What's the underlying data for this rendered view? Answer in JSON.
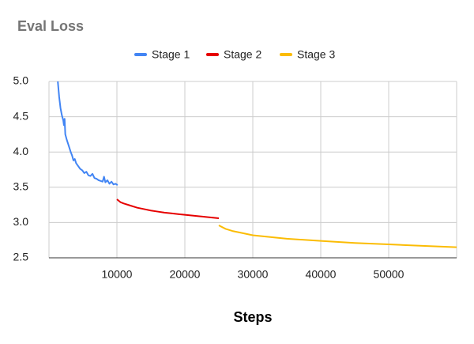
{
  "chart_data": {
    "type": "line",
    "title": "Eval Loss",
    "x_label": "Steps",
    "legend": "top",
    "grid": true,
    "xlim": [
      0,
      60000
    ],
    "xticks": [
      10000,
      20000,
      30000,
      40000,
      50000
    ],
    "ylim": [
      2.5,
      5
    ],
    "yticks": [
      {
        "value": 2.5,
        "label": "2.5"
      },
      {
        "value": 3,
        "label": "3.0"
      },
      {
        "value": 3.5,
        "label": "3.5"
      },
      {
        "value": 4,
        "label": "4.0"
      },
      {
        "value": 4.5,
        "label": "4.5"
      },
      {
        "value": 5,
        "label": "5.0"
      }
    ],
    "series": [
      {
        "name": "Stage 1",
        "color": "#4285f4",
        "x": [
          1300,
          1500,
          1700,
          1900,
          2100,
          2200,
          2300,
          2400,
          2600,
          2800,
          3000,
          3200,
          3400,
          3600,
          3800,
          4000,
          4300,
          4600,
          4900,
          5200,
          5500,
          5800,
          6100,
          6400,
          6700,
          7000,
          7300,
          7600,
          7900,
          8100,
          8300,
          8600,
          8900,
          9200,
          9500,
          9800,
          10100
        ],
        "values": [
          5.0,
          4.78,
          4.62,
          4.52,
          4.45,
          4.38,
          4.47,
          4.25,
          4.18,
          4.12,
          4.06,
          4.0,
          3.95,
          3.88,
          3.9,
          3.84,
          3.8,
          3.76,
          3.74,
          3.7,
          3.72,
          3.67,
          3.66,
          3.69,
          3.63,
          3.62,
          3.6,
          3.59,
          3.58,
          3.65,
          3.57,
          3.6,
          3.55,
          3.58,
          3.54,
          3.55,
          3.53
        ]
      },
      {
        "name": "Stage 2",
        "color": "#e60000",
        "x": [
          10000,
          10500,
          11000,
          12000,
          13000,
          14000,
          15000,
          16000,
          17000,
          18000,
          19000,
          20000,
          21000,
          22000,
          23000,
          24000,
          25000
        ],
        "values": [
          3.33,
          3.29,
          3.27,
          3.24,
          3.21,
          3.19,
          3.17,
          3.155,
          3.14,
          3.13,
          3.12,
          3.11,
          3.1,
          3.09,
          3.08,
          3.07,
          3.06
        ]
      },
      {
        "name": "Stage 3",
        "color": "#fbbc04",
        "x": [
          25000,
          26000,
          27000,
          28000,
          30000,
          32000,
          35000,
          40000,
          45000,
          50000,
          55000,
          60000
        ],
        "values": [
          2.96,
          2.91,
          2.88,
          2.86,
          2.82,
          2.8,
          2.77,
          2.74,
          2.71,
          2.69,
          2.67,
          2.65
        ]
      }
    ]
  }
}
